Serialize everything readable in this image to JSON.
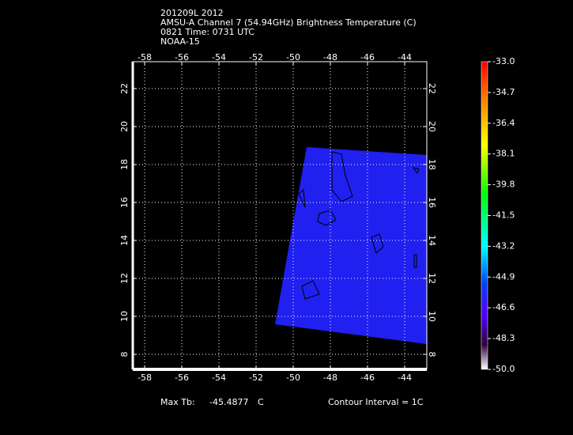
{
  "header": {
    "lines": [
      "201209L 2012",
      "AMSU-A Channel 7 (54.94GHz) Brightness Temperature (C)",
      "0821 Time: 0731 UTC",
      "NOAA-15"
    ]
  },
  "axes": {
    "lon_labels": [
      "-58",
      "-56",
      "-54",
      "-52",
      "-50",
      "-48",
      "-46",
      "-44"
    ],
    "lat_labels": [
      "22",
      "20",
      "18",
      "16",
      "14",
      "12",
      "10",
      "8"
    ]
  },
  "colorbar": {
    "labels": [
      "-33.0",
      "-34.7",
      "-36.4",
      "-38.1",
      "-39.8",
      "-41.5",
      "-43.2",
      "-44.9",
      "-46.6",
      "-48.3",
      "-50.0"
    ]
  },
  "footer": {
    "max_label": "Max Tb:",
    "max_value": "-45.4877",
    "unit": "C",
    "contour": "Contour Interval = 1C"
  }
}
